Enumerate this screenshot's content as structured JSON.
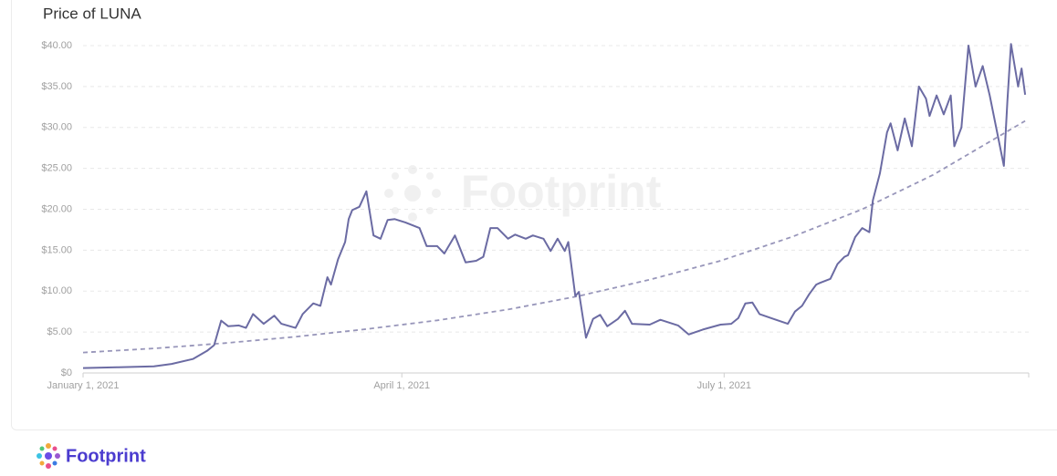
{
  "chart_data": {
    "type": "line",
    "title": "Price of LUNA",
    "watermark": "Footprint",
    "xlim": [
      0,
      267
    ],
    "xticks": [
      {
        "value": 0,
        "label": "January 1, 2021"
      },
      {
        "value": 90,
        "label": "April 1, 2021"
      },
      {
        "value": 181,
        "label": "July 1, 2021"
      }
    ],
    "ylim": [
      0,
      40
    ],
    "yticks": [
      {
        "value": 0,
        "label": "$0"
      },
      {
        "value": 5,
        "label": "$5.00"
      },
      {
        "value": 10,
        "label": "$10.00"
      },
      {
        "value": 15,
        "label": "$15.00"
      },
      {
        "value": 20,
        "label": "$20.00"
      },
      {
        "value": 25,
        "label": "$25.00"
      },
      {
        "value": 30,
        "label": "$30.00"
      },
      {
        "value": 35,
        "label": "$35.00"
      },
      {
        "value": 40,
        "label": "$40.00"
      }
    ],
    "grid": true,
    "series": [
      {
        "color": "#6b6ba3",
        "dashed": false,
        "x": [
          0,
          10,
          20,
          25,
          31,
          35,
          37,
          39,
          41,
          44,
          46,
          48,
          51,
          54,
          56,
          60,
          62,
          65,
          67,
          69,
          70,
          72,
          74,
          75,
          76,
          78,
          80,
          82,
          84,
          86,
          88,
          91,
          95,
          97,
          100,
          102,
          105,
          108,
          111,
          113,
          115,
          117,
          120,
          122,
          125,
          127,
          130,
          132,
          134,
          136,
          137,
          139,
          140,
          142,
          144,
          146,
          148,
          151,
          153,
          155,
          160,
          163,
          168,
          171,
          175,
          180,
          183,
          185,
          187,
          189,
          191,
          195,
          199,
          201,
          203,
          205,
          207,
          208,
          211,
          213,
          215,
          216,
          218,
          220,
          222,
          223,
          225,
          227,
          228,
          230,
          232,
          234,
          236,
          238,
          239,
          241,
          243,
          245,
          246,
          248,
          250,
          252,
          254,
          256,
          260,
          261,
          262,
          264,
          265,
          266
        ],
        "values": [
          0.6,
          0.7,
          0.8,
          1.1,
          1.7,
          2.7,
          3.4,
          6.4,
          5.7,
          5.8,
          5.5,
          7.2,
          6.0,
          7.0,
          6.0,
          5.5,
          7.2,
          8.5,
          8.2,
          11.7,
          10.8,
          13.9,
          16.0,
          18.8,
          19.9,
          20.3,
          22.2,
          16.8,
          16.4,
          18.7,
          18.8,
          18.4,
          17.7,
          15.5,
          15.5,
          14.6,
          16.8,
          13.5,
          13.7,
          14.2,
          17.7,
          17.7,
          16.4,
          16.9,
          16.4,
          16.8,
          16.4,
          14.9,
          16.4,
          14.9,
          16.0,
          9.4,
          9.9,
          4.3,
          6.6,
          7.1,
          5.7,
          6.6,
          7.6,
          6.0,
          5.9,
          6.5,
          5.8,
          4.7,
          5.3,
          5.9,
          6.0,
          6.7,
          8.5,
          8.6,
          7.2,
          6.6,
          6.0,
          7.5,
          8.2,
          9.6,
          10.8,
          11.0,
          11.5,
          13.3,
          14.2,
          14.4,
          16.6,
          17.7,
          17.2,
          21.1,
          24.4,
          29.4,
          30.5,
          27.2,
          31.1,
          27.7,
          35.0,
          33.5,
          31.4,
          33.9,
          31.6,
          33.9,
          27.7,
          30.0,
          40.0,
          35.0,
          37.5,
          33.9,
          25.3,
          33.3,
          40.2,
          35.0,
          37.2,
          34.0
        ]
      },
      {
        "color": "#9896ba",
        "dashed": true,
        "x": [
          0,
          20,
          40,
          60,
          80,
          100,
          120,
          140,
          160,
          180,
          200,
          220,
          240,
          266
        ],
        "values": [
          2.5,
          3.0,
          3.64,
          4.42,
          5.36,
          6.43,
          7.76,
          9.4,
          11.4,
          13.7,
          16.6,
          20.0,
          24.2,
          30.8
        ]
      }
    ]
  },
  "footer": {
    "brand": "Footprint"
  }
}
